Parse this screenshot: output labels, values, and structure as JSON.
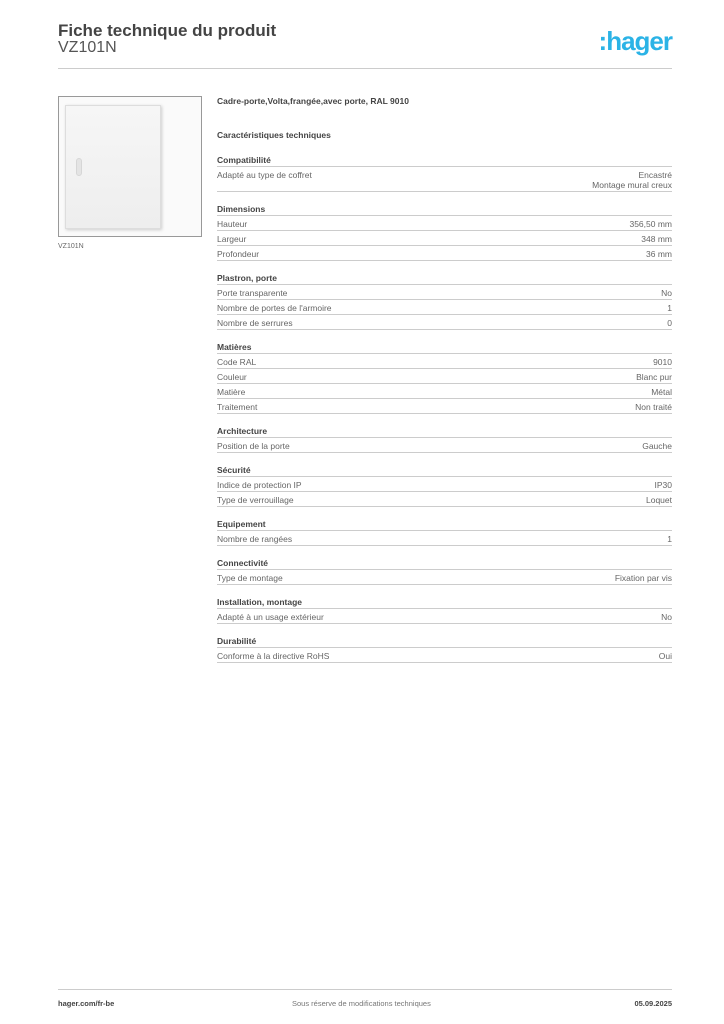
{
  "header": {
    "title": "Fiche technique du produit",
    "code": "VZ101N",
    "logo": ":hager"
  },
  "image_caption": "VZ101N",
  "description": "Cadre-porte,Volta,frangée,avec porte,  RAL 9010",
  "characteristics_title": "Caractéristiques techniques",
  "sections": [
    {
      "title": "Compatibilité",
      "rows": [
        {
          "label": "Adapté au type de coffret",
          "value": "Encastré\nMontage mural creux"
        }
      ]
    },
    {
      "title": "Dimensions",
      "rows": [
        {
          "label": "Hauteur",
          "value": "356,50 mm"
        },
        {
          "label": "Largeur",
          "value": "348 mm"
        },
        {
          "label": "Profondeur",
          "value": "36 mm"
        }
      ]
    },
    {
      "title": " Plastron, porte",
      "rows": [
        {
          "label": "Porte transparente",
          "value": "No"
        },
        {
          "label": "Nombre de portes de l'armoire",
          "value": "1"
        },
        {
          "label": "Nombre de serrures",
          "value": "0"
        }
      ]
    },
    {
      "title": "Matières",
      "rows": [
        {
          "label": "Code RAL",
          "value": "9010"
        },
        {
          "label": "Couleur",
          "value": "Blanc pur"
        },
        {
          "label": "Matière",
          "value": "Métal"
        },
        {
          "label": "Traitement",
          "value": "Non traité"
        }
      ]
    },
    {
      "title": "Architecture",
      "rows": [
        {
          "label": "Position de la porte",
          "value": "Gauche"
        }
      ]
    },
    {
      "title": "Sécurité",
      "rows": [
        {
          "label": "Indice de protection IP",
          "value": "IP30"
        },
        {
          "label": "Type de verrouillage",
          "value": "Loquet"
        }
      ]
    },
    {
      "title": "Equipement",
      "rows": [
        {
          "label": "Nombre de rangées",
          "value": "1"
        }
      ]
    },
    {
      "title": "Connectivité",
      "rows": [
        {
          "label": "Type de montage",
          "value": "Fixation par vis"
        }
      ]
    },
    {
      "title": "Installation, montage",
      "rows": [
        {
          "label": "Adapté à un usage extérieur",
          "value": "No"
        }
      ]
    },
    {
      "title": "Durabilité",
      "rows": [
        {
          "label": "Conforme à la directive RoHS",
          "value": "Oui"
        }
      ]
    }
  ],
  "footer": {
    "website": "hager.com/fr-be",
    "disclaimer": "Sous réserve de modifications techniques",
    "date": "05.09.2025"
  },
  "colors": {
    "brand": "#2bb3e6"
  }
}
